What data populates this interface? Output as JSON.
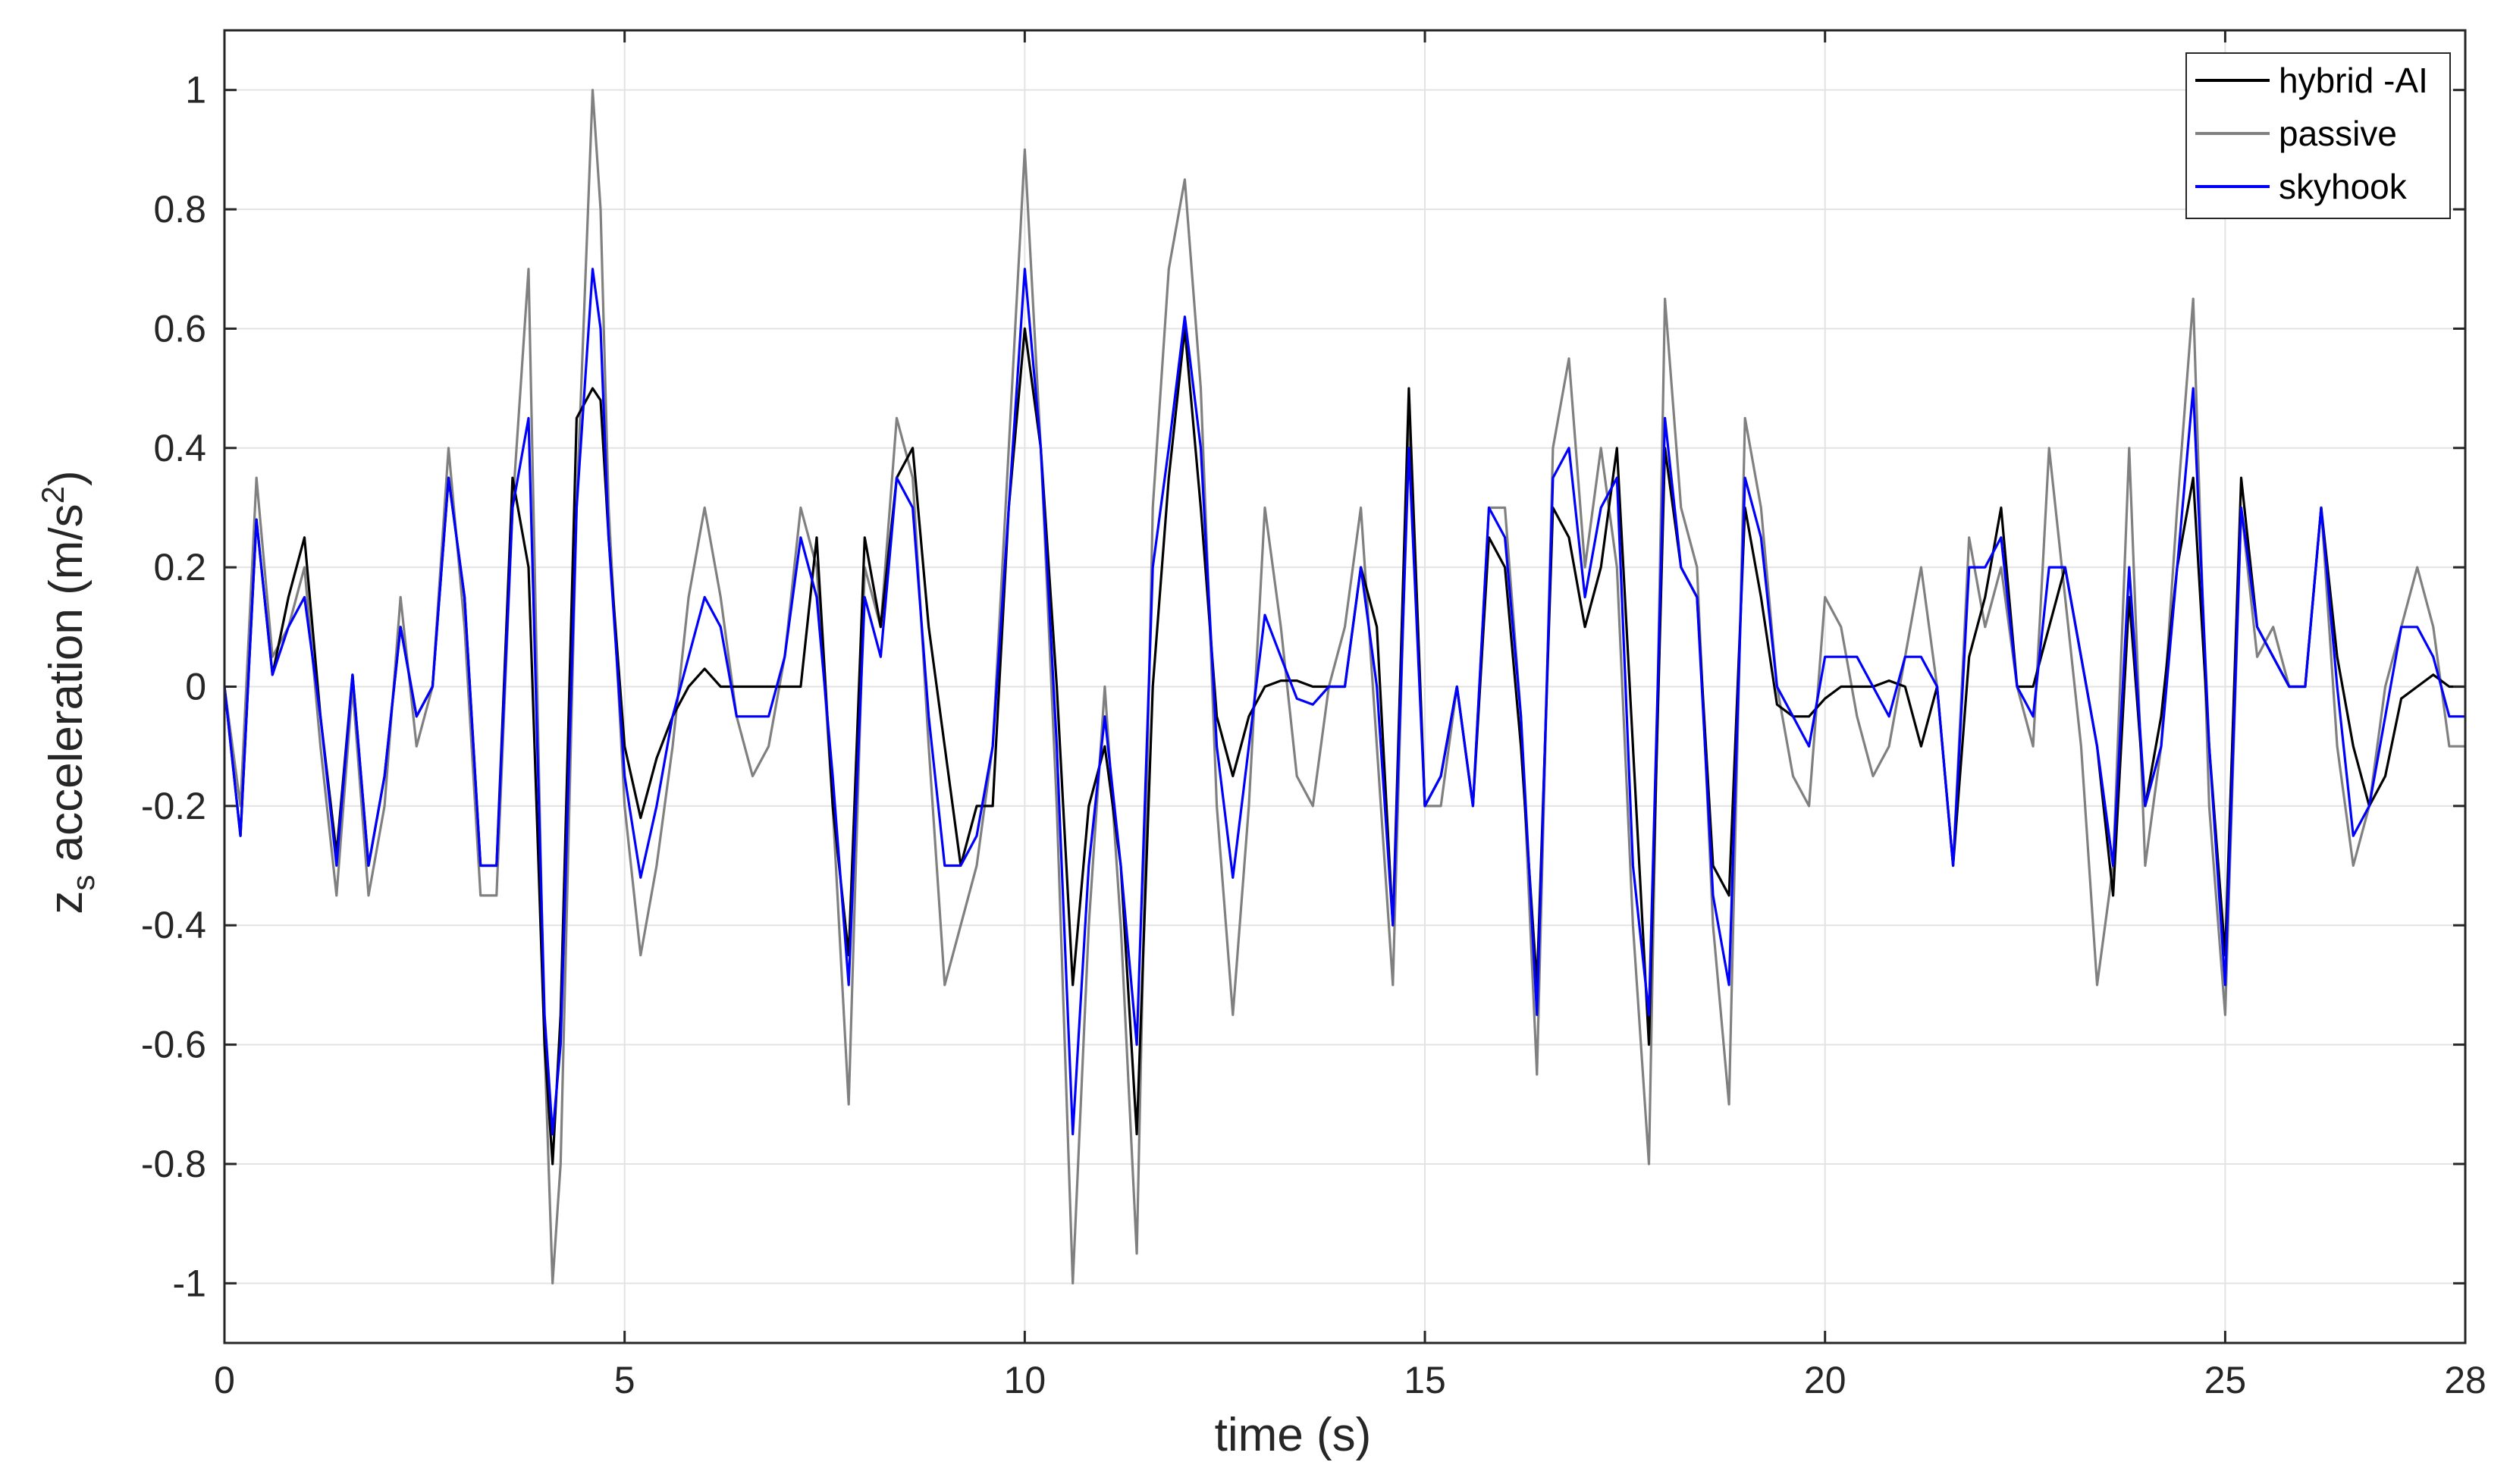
{
  "chart_data": {
    "type": "line",
    "title": "",
    "xlabel": "time (s)",
    "ylabel_main": "z",
    "ylabel_sub": "s",
    "ylabel_rest": " acceleration (m/s",
    "ylabel_sup": "2",
    "ylabel_end": ")",
    "xlim": [
      0,
      28
    ],
    "ylim": [
      -1.1,
      1.1
    ],
    "x_ticks": [
      0,
      5,
      10,
      15,
      20,
      25,
      28
    ],
    "x_tick_labels": [
      "0",
      "5",
      "10",
      "15",
      "20",
      "25",
      "28"
    ],
    "y_ticks": [
      1,
      0.8,
      0.6,
      0.4,
      0.2,
      0,
      -0.2,
      -0.4,
      -0.6,
      -0.8,
      -1
    ],
    "y_tick_labels": [
      "1",
      "0.8",
      "0.6",
      "0.4",
      "0.2",
      "0",
      "-0.2",
      "-0.4",
      "-0.6",
      "-0.8",
      "-1"
    ],
    "grid": true,
    "legend_position": "top-right",
    "x": [
      0,
      0.2,
      0.4,
      0.6,
      0.8,
      1.0,
      1.2,
      1.4,
      1.6,
      1.8,
      2.0,
      2.2,
      2.4,
      2.6,
      2.8,
      3.0,
      3.2,
      3.4,
      3.6,
      3.8,
      4.0,
      4.1,
      4.2,
      4.4,
      4.6,
      4.7,
      4.8,
      5.0,
      5.2,
      5.4,
      5.6,
      5.8,
      6.0,
      6.2,
      6.4,
      6.6,
      6.8,
      7.0,
      7.2,
      7.4,
      7.6,
      7.8,
      8.0,
      8.2,
      8.4,
      8.6,
      8.8,
      9.0,
      9.2,
      9.4,
      9.6,
      9.8,
      10.0,
      10.2,
      10.4,
      10.6,
      10.8,
      11.0,
      11.2,
      11.4,
      11.6,
      11.8,
      12.0,
      12.2,
      12.4,
      12.6,
      12.8,
      13.0,
      13.2,
      13.4,
      13.6,
      13.8,
      14.0,
      14.2,
      14.4,
      14.6,
      14.8,
      15.0,
      15.2,
      15.4,
      15.6,
      15.8,
      16.0,
      16.2,
      16.4,
      16.6,
      16.8,
      17.0,
      17.2,
      17.4,
      17.6,
      17.8,
      18.0,
      18.2,
      18.4,
      18.6,
      18.8,
      19.0,
      19.2,
      19.4,
      19.6,
      19.8,
      20.0,
      20.2,
      20.4,
      20.6,
      20.8,
      21.0,
      21.2,
      21.4,
      21.6,
      21.8,
      22.0,
      22.2,
      22.4,
      22.6,
      22.8,
      23.0,
      23.2,
      23.4,
      23.6,
      23.8,
      24.0,
      24.2,
      24.4,
      24.6,
      24.8,
      25.0,
      25.2,
      25.4,
      25.6,
      25.8,
      26.0,
      26.2,
      26.4,
      26.6,
      26.8,
      27.0,
      27.2,
      27.4,
      27.6,
      27.8,
      28.0
    ],
    "series": [
      {
        "name": "hybrid -AI",
        "color": "#000000",
        "values": [
          0,
          -0.25,
          0.28,
          0.02,
          0.15,
          0.25,
          -0.05,
          -0.28,
          0.02,
          -0.3,
          -0.15,
          0.1,
          -0.05,
          0.0,
          0.35,
          0.15,
          -0.3,
          -0.3,
          0.35,
          0.2,
          -0.6,
          -0.8,
          -0.55,
          0.45,
          0.5,
          0.48,
          0.25,
          -0.1,
          -0.22,
          -0.12,
          -0.05,
          0.0,
          0.03,
          0.0,
          0.0,
          0.0,
          0.0,
          0.0,
          0.0,
          0.25,
          -0.2,
          -0.45,
          0.25,
          0.1,
          0.35,
          0.4,
          0.1,
          -0.1,
          -0.3,
          -0.2,
          -0.2,
          0.3,
          0.6,
          0.4,
          0.0,
          -0.5,
          -0.2,
          -0.1,
          -0.3,
          -0.75,
          0.0,
          0.35,
          0.6,
          0.3,
          -0.05,
          -0.15,
          -0.05,
          0.0,
          0.01,
          0.01,
          0.0,
          0.0,
          0.0,
          0.2,
          0.1,
          -0.4,
          0.5,
          -0.2,
          -0.15,
          0.0,
          -0.2,
          0.25,
          0.2,
          -0.1,
          -0.5,
          0.3,
          0.25,
          0.1,
          0.2,
          0.4,
          -0.1,
          -0.6,
          0.4,
          0.2,
          0.15,
          -0.3,
          -0.35,
          0.3,
          0.15,
          -0.03,
          -0.05,
          -0.05,
          -0.02,
          0.0,
          0.0,
          0.0,
          0.01,
          0.0,
          -0.1,
          0.0,
          -0.3,
          0.05,
          0.15,
          0.3,
          0.0,
          0.0,
          0.1,
          0.2,
          0.05,
          -0.1,
          -0.35,
          0.15,
          -0.2,
          -0.05,
          0.2,
          0.35,
          -0.1,
          -0.45,
          0.35,
          0.1,
          0.05,
          0.0,
          0.0,
          0.3,
          0.05,
          -0.1,
          -0.2,
          -0.15,
          -0.02,
          0.0,
          0.02,
          0.0,
          0.0
        ]
      },
      {
        "name": "passive",
        "color": "#808080",
        "values": [
          0,
          -0.2,
          0.35,
          0.05,
          0.1,
          0.2,
          -0.1,
          -0.35,
          0.0,
          -0.35,
          -0.2,
          0.15,
          -0.1,
          0.0,
          0.4,
          0.1,
          -0.35,
          -0.35,
          0.3,
          0.7,
          -0.6,
          -1.0,
          -0.8,
          0.3,
          1.0,
          0.8,
          0.3,
          -0.2,
          -0.45,
          -0.3,
          -0.1,
          0.15,
          0.3,
          0.15,
          -0.05,
          -0.15,
          -0.1,
          0.05,
          0.3,
          0.2,
          -0.2,
          -0.7,
          0.2,
          0.1,
          0.45,
          0.35,
          -0.1,
          -0.5,
          -0.4,
          -0.3,
          -0.1,
          0.4,
          0.9,
          0.4,
          -0.2,
          -1.0,
          -0.4,
          0.0,
          -0.4,
          -0.95,
          0.3,
          0.7,
          0.85,
          0.5,
          -0.2,
          -0.55,
          -0.2,
          0.3,
          0.1,
          -0.15,
          -0.2,
          0.0,
          0.1,
          0.3,
          -0.1,
          -0.5,
          0.45,
          -0.2,
          -0.2,
          0.0,
          -0.2,
          0.3,
          0.3,
          -0.05,
          -0.65,
          0.4,
          0.55,
          0.2,
          0.4,
          0.2,
          -0.4,
          -0.8,
          0.65,
          0.3,
          0.2,
          -0.4,
          -0.7,
          0.45,
          0.3,
          0.0,
          -0.15,
          -0.2,
          0.15,
          0.1,
          -0.05,
          -0.15,
          -0.1,
          0.05,
          0.2,
          0.0,
          -0.3,
          0.25,
          0.1,
          0.2,
          0.0,
          -0.1,
          0.4,
          0.15,
          -0.1,
          -0.5,
          -0.3,
          0.4,
          -0.3,
          -0.1,
          0.3,
          0.65,
          -0.2,
          -0.55,
          0.3,
          0.05,
          0.1,
          0.0,
          0.0,
          0.3,
          -0.1,
          -0.3,
          -0.2,
          0.0,
          0.1,
          0.2,
          0.1,
          -0.1,
          -0.1
        ]
      },
      {
        "name": "skyhook",
        "color": "#0000ff",
        "values": [
          0,
          -0.25,
          0.28,
          0.02,
          0.1,
          0.15,
          -0.05,
          -0.3,
          0.02,
          -0.3,
          -0.15,
          0.1,
          -0.05,
          0.0,
          0.35,
          0.15,
          -0.3,
          -0.3,
          0.3,
          0.45,
          -0.55,
          -0.75,
          -0.6,
          0.3,
          0.7,
          0.6,
          0.25,
          -0.15,
          -0.32,
          -0.2,
          -0.05,
          0.05,
          0.15,
          0.1,
          -0.05,
          -0.05,
          -0.05,
          0.05,
          0.25,
          0.15,
          -0.15,
          -0.5,
          0.15,
          0.05,
          0.35,
          0.3,
          -0.05,
          -0.3,
          -0.3,
          -0.25,
          -0.1,
          0.3,
          0.7,
          0.4,
          -0.1,
          -0.75,
          -0.3,
          -0.05,
          -0.3,
          -0.6,
          0.2,
          0.4,
          0.62,
          0.4,
          -0.1,
          -0.32,
          -0.1,
          0.12,
          0.05,
          -0.02,
          -0.03,
          0.0,
          0.0,
          0.2,
          0.0,
          -0.4,
          0.4,
          -0.2,
          -0.15,
          0.0,
          -0.2,
          0.3,
          0.25,
          -0.05,
          -0.55,
          0.35,
          0.4,
          0.15,
          0.3,
          0.35,
          -0.3,
          -0.55,
          0.45,
          0.2,
          0.15,
          -0.35,
          -0.5,
          0.35,
          0.25,
          0.0,
          -0.05,
          -0.1,
          0.05,
          0.05,
          0.05,
          0.0,
          -0.05,
          0.05,
          0.05,
          0.0,
          -0.3,
          0.2,
          0.2,
          0.25,
          0.0,
          -0.05,
          0.2,
          0.2,
          0.05,
          -0.1,
          -0.3,
          0.2,
          -0.2,
          -0.1,
          0.2,
          0.5,
          -0.1,
          -0.5,
          0.3,
          0.1,
          0.05,
          0.0,
          0.0,
          0.3,
          0.0,
          -0.25,
          -0.2,
          -0.05,
          0.1,
          0.1,
          0.05,
          -0.05,
          -0.05
        ]
      }
    ]
  }
}
